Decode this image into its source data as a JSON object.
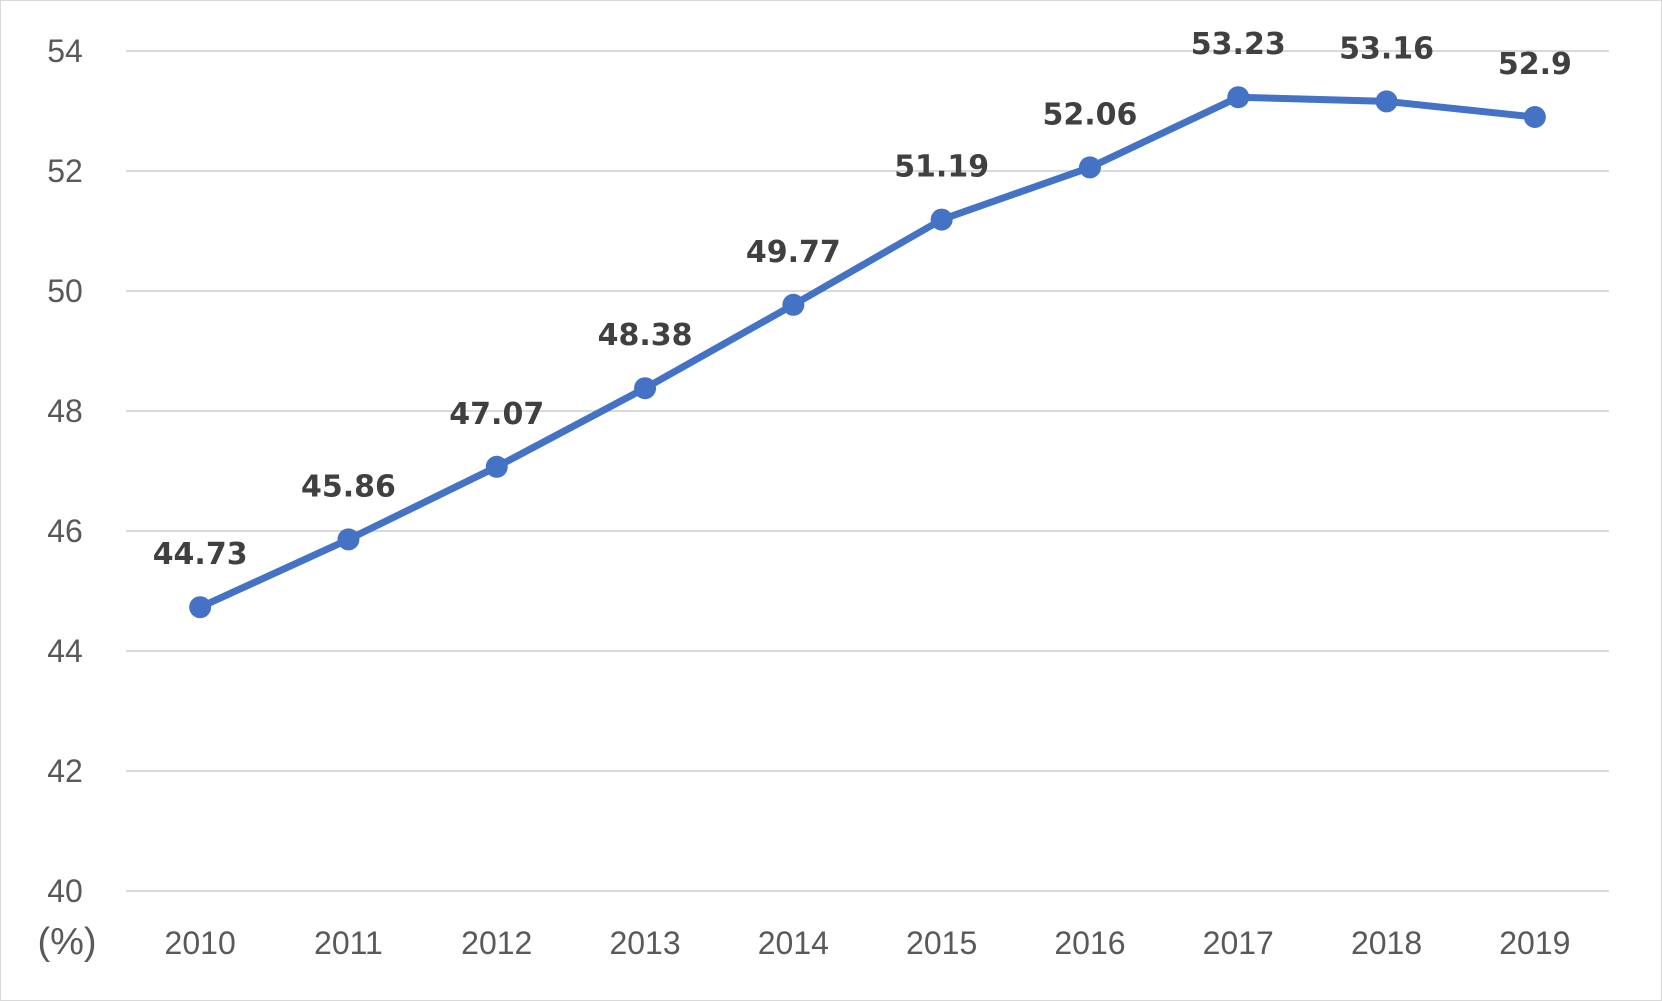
{
  "chart_data": {
    "type": "line",
    "title": "",
    "xlabel": "",
    "ylabel": "(%)",
    "x": [
      "2010",
      "2011",
      "2012",
      "2013",
      "2014",
      "2015",
      "2016",
      "2017",
      "2018",
      "2019"
    ],
    "series": [
      {
        "values": [
          44.73,
          45.86,
          47.07,
          48.38,
          49.77,
          51.19,
          52.06,
          53.23,
          53.16,
          52.9
        ],
        "labels": [
          "44.73",
          "45.86",
          "47.07",
          "48.38",
          "49.77",
          "51.19",
          "52.06",
          "53.23",
          "53.16",
          "52.9"
        ],
        "color": "#4472c4"
      }
    ],
    "ylim": [
      40,
      54
    ],
    "yticks": [
      "40",
      "42",
      "44",
      "46",
      "48",
      "50",
      "52",
      "54"
    ],
    "grid": true,
    "legend": "none",
    "gridline_color": "#d9d9d9"
  }
}
